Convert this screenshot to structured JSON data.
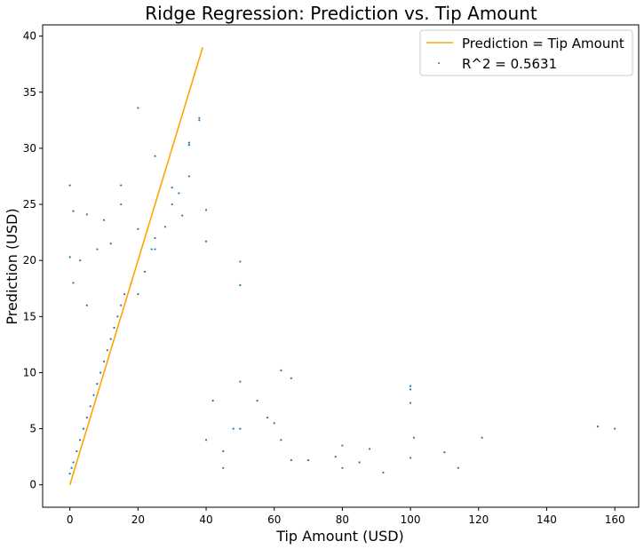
{
  "chart_data": {
    "type": "scatter",
    "title": "Ridge Regression: Prediction vs. Tip Amount",
    "xlabel": "Tip Amount (USD)",
    "ylabel": "Prediction (USD)",
    "xlim": [
      -8,
      167
    ],
    "ylim": [
      -2,
      41
    ],
    "xticks": [
      0,
      20,
      40,
      60,
      80,
      100,
      120,
      140,
      160
    ],
    "yticks": [
      0,
      5,
      10,
      15,
      20,
      25,
      30,
      35,
      40
    ],
    "grid": false,
    "legend_position": "top-right",
    "series": [
      {
        "name": "Prediction = Tip Amount",
        "kind": "line",
        "color": "#FFA500",
        "x": [
          0,
          39
        ],
        "y": [
          0,
          39
        ]
      },
      {
        "name": "R^2 = 0.5631",
        "kind": "scatter",
        "color": "#1f77b4",
        "x": [
          0,
          0.5,
          1,
          2,
          3,
          4,
          5,
          6,
          7,
          8,
          9,
          10,
          11,
          12,
          13,
          14,
          15,
          16,
          18,
          20,
          22,
          24,
          25,
          28,
          30,
          32,
          35,
          38,
          40,
          0,
          1,
          3,
          5,
          8,
          10,
          12,
          15,
          20,
          25,
          30,
          35,
          20,
          15,
          38,
          35,
          33,
          25,
          0,
          1,
          5,
          40,
          50,
          50,
          40,
          45,
          48,
          55,
          58,
          60,
          62,
          65,
          70,
          78,
          80,
          80,
          85,
          88,
          92,
          100,
          100,
          100,
          100,
          101,
          110,
          114,
          121,
          155,
          160,
          50,
          50,
          45,
          42,
          62,
          65
        ],
        "y": [
          1,
          1.5,
          2,
          3,
          4,
          5,
          6,
          7,
          8,
          9,
          10,
          11,
          12,
          13,
          14,
          15,
          16,
          17,
          18,
          17,
          19,
          21,
          22,
          23,
          25,
          26,
          30.5,
          32.5,
          24.5,
          26.7,
          24.4,
          20,
          24.1,
          21,
          23.6,
          21.5,
          26.7,
          33.6,
          29.3,
          26.5,
          27.5,
          22.8,
          25,
          32.7,
          30.3,
          24,
          21,
          20.3,
          18,
          16,
          21.7,
          19.9,
          17.8,
          4,
          3,
          5,
          7.5,
          6,
          5.5,
          4,
          9.5,
          2.2,
          2.5,
          3.5,
          1.5,
          2,
          3.2,
          1.1,
          8.5,
          8.8,
          7.3,
          2.4,
          4.2,
          2.9,
          1.5,
          4.2,
          5.2,
          5,
          9.2,
          5,
          1.5,
          7.5,
          10.2,
          2.2
        ]
      }
    ]
  }
}
